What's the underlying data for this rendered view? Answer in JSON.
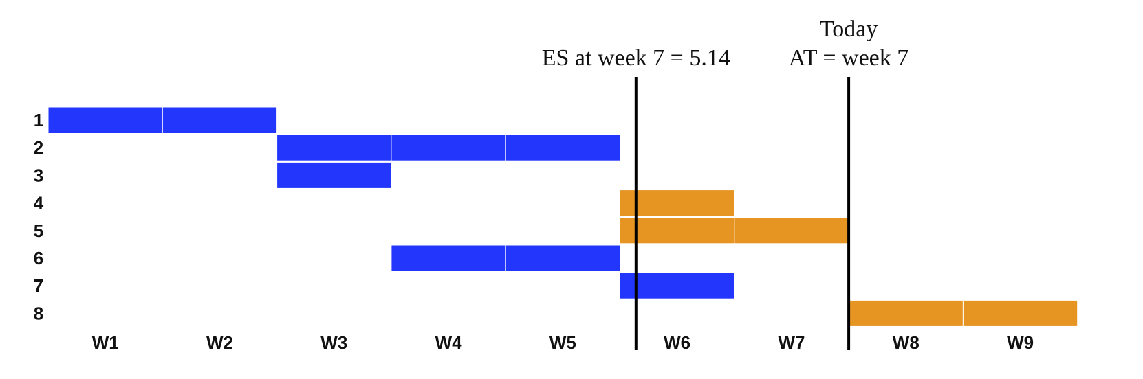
{
  "chart_data": {
    "type": "gantt",
    "tasks": [
      "1",
      "2",
      "3",
      "4",
      "5",
      "6",
      "7",
      "8"
    ],
    "weeks": [
      "W1",
      "W2",
      "W3",
      "W4",
      "W5",
      "W6",
      "W7",
      "W8",
      "W9"
    ],
    "colors": {
      "done": "#2336fb",
      "pending": "#e69422",
      "cell_border": "#ffffff",
      "marker": "#000000"
    },
    "bars": [
      {
        "task": "1",
        "start_week": 1,
        "end_week": 2,
        "status": "done"
      },
      {
        "task": "2",
        "start_week": 3,
        "end_week": 5,
        "status": "done"
      },
      {
        "task": "3",
        "start_week": 3,
        "end_week": 3,
        "status": "done"
      },
      {
        "task": "4",
        "start_week": 6,
        "end_week": 6,
        "status": "pending"
      },
      {
        "task": "5",
        "start_week": 6,
        "end_week": 7,
        "status": "pending"
      },
      {
        "task": "6",
        "start_week": 4,
        "end_week": 5,
        "status": "done"
      },
      {
        "task": "7",
        "start_week": 6,
        "end_week": 6,
        "status": "done"
      },
      {
        "task": "8",
        "start_week": 8,
        "end_week": 9,
        "status": "pending"
      }
    ],
    "markers": [
      {
        "id": "es",
        "week_position": 5.14,
        "lines": [
          "ES at week 7 = 5.14"
        ]
      },
      {
        "id": "at",
        "week_position": 7,
        "lines": [
          "Today",
          "AT = week 7"
        ]
      }
    ]
  }
}
